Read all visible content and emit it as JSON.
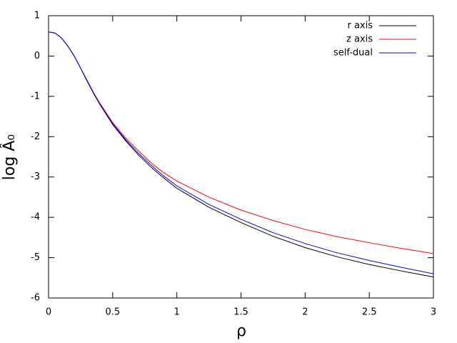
{
  "chart_data": {
    "type": "line",
    "xlabel": "ρ",
    "ylabel": "log Â₀",
    "x": [
      0,
      0.05,
      0.1,
      0.15,
      0.2,
      0.25,
      0.3,
      0.35,
      0.4,
      0.5,
      0.6,
      0.7,
      0.8,
      0.9,
      1.0,
      1.25,
      1.5,
      1.75,
      2.0,
      2.25,
      2.5,
      2.75,
      3.0
    ],
    "series": [
      {
        "name": "r axis",
        "color": "#000000",
        "values": [
          0.6,
          0.57,
          0.45,
          0.25,
          0.0,
          -0.3,
          -0.62,
          -0.92,
          -1.2,
          -1.7,
          -2.1,
          -2.45,
          -2.76,
          -3.03,
          -3.28,
          -3.75,
          -4.13,
          -4.47,
          -4.75,
          -4.98,
          -5.17,
          -5.33,
          -5.48
        ]
      },
      {
        "name": "z axis",
        "color": "#ff0000",
        "values": [
          0.6,
          0.57,
          0.45,
          0.25,
          0.0,
          -0.3,
          -0.6,
          -0.9,
          -1.17,
          -1.65,
          -2.03,
          -2.35,
          -2.65,
          -2.9,
          -3.1,
          -3.5,
          -3.82,
          -4.08,
          -4.3,
          -4.48,
          -4.63,
          -4.77,
          -4.9
        ]
      },
      {
        "name": "self-dual",
        "color": "#0000ff",
        "values": [
          0.6,
          0.57,
          0.45,
          0.25,
          0.0,
          -0.3,
          -0.61,
          -0.91,
          -1.19,
          -1.68,
          -2.07,
          -2.41,
          -2.71,
          -2.98,
          -3.22,
          -3.68,
          -4.05,
          -4.38,
          -4.65,
          -4.88,
          -5.07,
          -5.24,
          -5.4
        ]
      }
    ],
    "xlim": [
      0,
      3
    ],
    "xticks": [
      0,
      0.5,
      1,
      1.5,
      2,
      2.5,
      3
    ],
    "ylim": [
      -6,
      1
    ],
    "yticks": [
      -6,
      -5,
      -4,
      -3,
      -2,
      -1,
      0,
      1
    ],
    "legend": "top-right",
    "grid": false
  }
}
